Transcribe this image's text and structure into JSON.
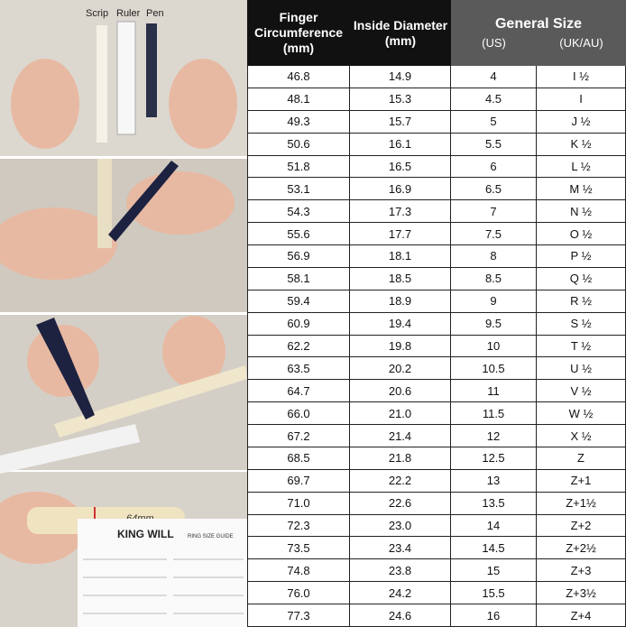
{
  "photos": {
    "tools": [
      "Scrip",
      "Ruler",
      "Pen"
    ],
    "mark": "64mm",
    "brand": "KING WILL",
    "guide": "RING SIZE GUIDE"
  },
  "table": {
    "header": {
      "circumference": "Finger Circumference",
      "circumference_unit": "(mm)",
      "diameter": "Inside Diameter",
      "diameter_unit": "(mm)",
      "general": "General Size",
      "us": "(US)",
      "uk": "(UK/AU)"
    },
    "rows": [
      [
        "46.8",
        "14.9",
        "4",
        "I ½"
      ],
      [
        "48.1",
        "15.3",
        "4.5",
        "I"
      ],
      [
        "49.3",
        "15.7",
        "5",
        "J ½"
      ],
      [
        "50.6",
        "16.1",
        "5.5",
        "K ½"
      ],
      [
        "51.8",
        "16.5",
        "6",
        "L ½"
      ],
      [
        "53.1",
        "16.9",
        "6.5",
        "M ½"
      ],
      [
        "54.3",
        "17.3",
        "7",
        "N ½"
      ],
      [
        "55.6",
        "17.7",
        "7.5",
        "O ½"
      ],
      [
        "56.9",
        "18.1",
        "8",
        "P ½"
      ],
      [
        "58.1",
        "18.5",
        "8.5",
        "Q ½"
      ],
      [
        "59.4",
        "18.9",
        "9",
        "R ½"
      ],
      [
        "60.9",
        "19.4",
        "9.5",
        "S ½"
      ],
      [
        "62.2",
        "19.8",
        "10",
        "T ½"
      ],
      [
        "63.5",
        "20.2",
        "10.5",
        "U ½"
      ],
      [
        "64.7",
        "20.6",
        "11",
        "V ½"
      ],
      [
        "66.0",
        "21.0",
        "11.5",
        "W ½"
      ],
      [
        "67.2",
        "21.4",
        "12",
        "X ½"
      ],
      [
        "68.5",
        "21.8",
        "12.5",
        "Z"
      ],
      [
        "69.7",
        "22.2",
        "13",
        "Z+1"
      ],
      [
        "71.0",
        "22.6",
        "13.5",
        "Z+1½"
      ],
      [
        "72.3",
        "23.0",
        "14",
        "Z+2"
      ],
      [
        "73.5",
        "23.4",
        "14.5",
        "Z+2½"
      ],
      [
        "74.8",
        "23.8",
        "15",
        "Z+3"
      ],
      [
        "76.0",
        "24.2",
        "15.5",
        "Z+3½"
      ],
      [
        "77.3",
        "24.6",
        "16",
        "Z+4"
      ]
    ]
  }
}
